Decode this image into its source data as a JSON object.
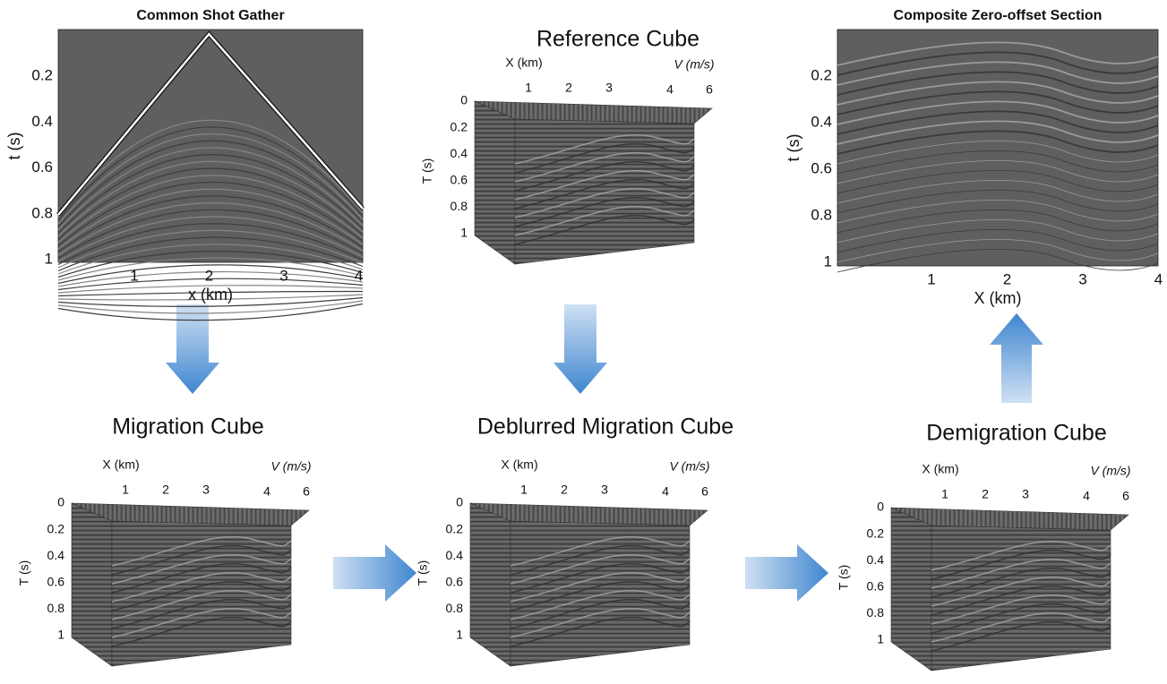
{
  "panels": [
    {
      "kind": "section",
      "title": "Common Shot Gather",
      "x_label": "x (km)",
      "y_label": "t (s)",
      "x_ticks": [
        "1",
        "2",
        "3",
        "4"
      ],
      "y_ticks": [
        "0.2",
        "0.4",
        "0.6",
        "0.8",
        "1"
      ]
    },
    {
      "kind": "cube",
      "title": "Reference Cube",
      "x_label": "X (km)",
      "v_label": "V (m/s)",
      "t_label": "T (s)",
      "x_ticks": [
        "1",
        "2",
        "3"
      ],
      "v_ticks": [
        "4",
        "6"
      ],
      "t_ticks": [
        "0",
        "0.2",
        "0.4",
        "0.6",
        "0.8",
        "1"
      ]
    },
    {
      "kind": "section",
      "title": "Composite Zero-offset Section",
      "x_label": "X (km)",
      "y_label": "t (s)",
      "x_ticks": [
        "1",
        "2",
        "3",
        "4"
      ],
      "y_ticks": [
        "0.2",
        "0.4",
        "0.6",
        "0.8",
        "1"
      ]
    },
    {
      "kind": "cube",
      "title": "Migration Cube",
      "x_label": "X (km)",
      "v_label": "V (m/s)",
      "t_label": "T (s)",
      "x_ticks": [
        "1",
        "2",
        "3"
      ],
      "v_ticks": [
        "4",
        "6"
      ],
      "t_ticks": [
        "0",
        "0.2",
        "0.4",
        "0.6",
        "0.8",
        "1"
      ]
    },
    {
      "kind": "cube",
      "title": "Deblurred Migration Cube",
      "x_label": "X (km)",
      "v_label": "V (m/s)",
      "t_label": "T (s)",
      "x_ticks": [
        "1",
        "2",
        "3"
      ],
      "v_ticks": [
        "4",
        "6"
      ],
      "t_ticks": [
        "0",
        "0.2",
        "0.4",
        "0.6",
        "0.8",
        "1"
      ]
    },
    {
      "kind": "cube",
      "title": "Demigration Cube",
      "x_label": "X (km)",
      "v_label": "V (m/s)",
      "t_label": "T (s)",
      "x_ticks": [
        "1",
        "2",
        "3"
      ],
      "v_ticks": [
        "4",
        "6"
      ],
      "t_ticks": [
        "0",
        "0.2",
        "0.4",
        "0.6",
        "0.8",
        "1"
      ]
    }
  ]
}
